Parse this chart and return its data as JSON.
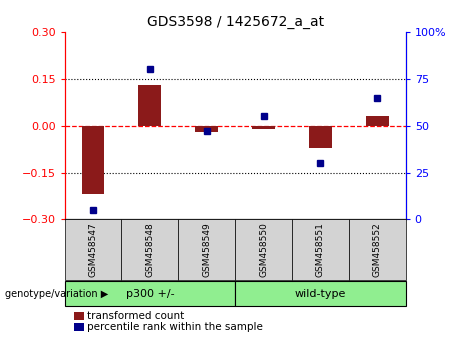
{
  "title": "GDS3598 / 1425672_a_at",
  "samples": [
    "GSM458547",
    "GSM458548",
    "GSM458549",
    "GSM458550",
    "GSM458551",
    "GSM458552"
  ],
  "red_values": [
    -0.22,
    0.13,
    -0.02,
    -0.01,
    -0.07,
    0.03
  ],
  "blue_values": [
    5,
    80,
    47,
    55,
    30,
    65
  ],
  "ylim_left": [
    -0.3,
    0.3
  ],
  "ylim_right": [
    0,
    100
  ],
  "yticks_left": [
    -0.3,
    -0.15,
    0,
    0.15,
    0.3
  ],
  "yticks_right": [
    0,
    25,
    50,
    75,
    100
  ],
  "ytick_labels_right": [
    "0",
    "25",
    "50",
    "75",
    "100%"
  ],
  "dotted_lines": [
    0.15,
    -0.15
  ],
  "red_dashed_line": 0,
  "bar_color": "#8B1A1A",
  "blue_color": "#00008B",
  "group1_label": "p300 +/-",
  "group2_label": "wild-type",
  "group_color": "#90EE90",
  "genotype_label": "genotype/variation",
  "legend_red": "transformed count",
  "legend_blue": "percentile rank within the sample",
  "background_plot": "#FFFFFF",
  "background_xtick": "#D3D3D3",
  "bar_width": 0.4
}
